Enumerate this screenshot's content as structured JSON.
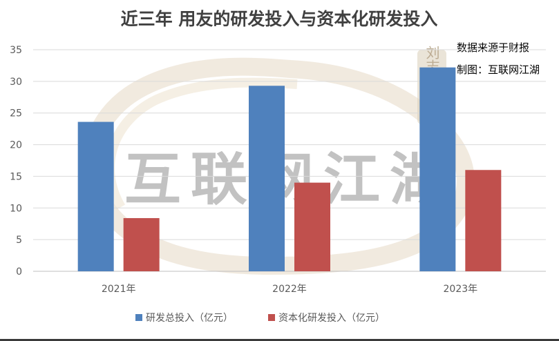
{
  "chart_data": {
    "type": "bar",
    "title": "近三年 用友的研发投入与资本化研发投入",
    "categories": [
      "2021年",
      "2022年",
      "2023年"
    ],
    "series": [
      {
        "name": "研发总投入（亿元）",
        "color": "#4f81bd",
        "values": [
          23.6,
          29.3,
          32.2
        ]
      },
      {
        "name": "资本化研发投入（亿元）",
        "color": "#c0504d",
        "values": [
          8.4,
          14.0,
          16.0
        ]
      }
    ],
    "ylim": [
      0,
      35
    ],
    "yticks": [
      0,
      5,
      10,
      15,
      20,
      25,
      30,
      35
    ],
    "grid": true,
    "legend": "bottom",
    "annotations": [
      "数据来源于财报",
      "制图：互联网江湖"
    ]
  },
  "watermark": {
    "text": "互联网江湖",
    "seal_text": "刘志刚"
  }
}
